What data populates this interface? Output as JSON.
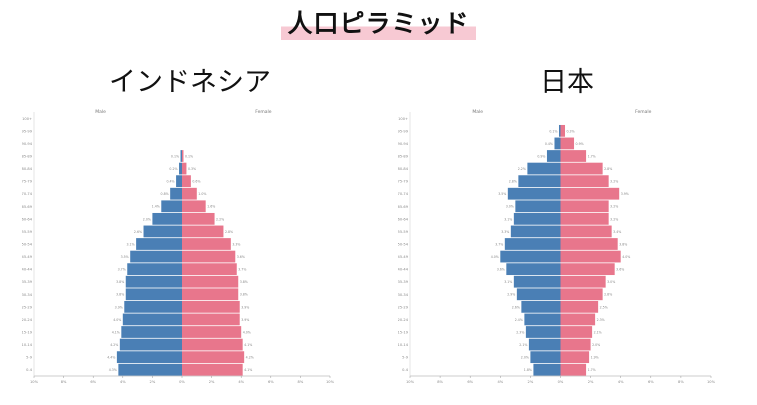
{
  "page": {
    "title": "人口ピラミッド"
  },
  "colors": {
    "male": "#4a7fb5",
    "female": "#e8768c",
    "highlight": "#f7c9d3"
  },
  "chart_data": [
    {
      "type": "bar",
      "title": "インドネシア",
      "legend": {
        "male": "Male",
        "female": "Female"
      },
      "y_tick_labels": [
        "100+",
        "95-99",
        "90-94",
        "85-89",
        "80-84",
        "75-79",
        "70-74",
        "65-69",
        "60-64",
        "55-59",
        "50-54",
        "45-49",
        "40-44",
        "35-39",
        "30-34",
        "25-29",
        "20-24",
        "15-19",
        "10-14",
        "5-9",
        "0-4"
      ],
      "x_ticks": [
        "10%",
        "8%",
        "6%",
        "4%",
        "2%",
        "0%",
        "2%",
        "4%",
        "6%",
        "8%",
        "10%"
      ],
      "xlim": [
        -10,
        10
      ],
      "series": [
        {
          "name": "Male",
          "values": [
            0.0,
            0.0,
            0.0,
            0.1,
            0.2,
            0.4,
            0.8,
            1.4,
            2.0,
            2.6,
            3.1,
            3.5,
            3.7,
            3.8,
            3.8,
            3.9,
            4.0,
            4.1,
            4.2,
            4.4,
            4.3
          ]
        },
        {
          "name": "Female",
          "values": [
            0.0,
            0.0,
            0.0,
            0.1,
            0.3,
            0.6,
            1.0,
            1.6,
            2.2,
            2.8,
            3.3,
            3.6,
            3.7,
            3.8,
            3.8,
            3.9,
            3.9,
            4.0,
            4.1,
            4.2,
            4.1
          ]
        }
      ]
    },
    {
      "type": "bar",
      "title": "日本",
      "legend": {
        "male": "Male",
        "female": "Female"
      },
      "y_tick_labels": [
        "100+",
        "95-99",
        "90-94",
        "85-89",
        "80-84",
        "75-79",
        "70-74",
        "65-69",
        "60-64",
        "55-59",
        "50-54",
        "45-49",
        "40-44",
        "35-39",
        "30-34",
        "25-29",
        "20-24",
        "15-19",
        "10-14",
        "5-9",
        "0-4"
      ],
      "x_ticks": [
        "10%",
        "8%",
        "6%",
        "4%",
        "2%",
        "0%",
        "2%",
        "4%",
        "6%",
        "8%",
        "10%"
      ],
      "xlim": [
        -10,
        10
      ],
      "series": [
        {
          "name": "Male",
          "values": [
            0.0,
            0.1,
            0.4,
            0.9,
            2.2,
            2.8,
            3.5,
            3.0,
            3.1,
            3.3,
            3.7,
            4.0,
            3.6,
            3.1,
            2.9,
            2.6,
            2.4,
            2.3,
            2.1,
            2.0,
            1.8
          ]
        },
        {
          "name": "Female",
          "values": [
            0.0,
            0.3,
            0.9,
            1.7,
            2.8,
            3.2,
            3.9,
            3.2,
            3.2,
            3.4,
            3.8,
            4.0,
            3.6,
            3.0,
            2.8,
            2.5,
            2.3,
            2.1,
            2.0,
            1.9,
            1.7
          ]
        }
      ]
    }
  ]
}
